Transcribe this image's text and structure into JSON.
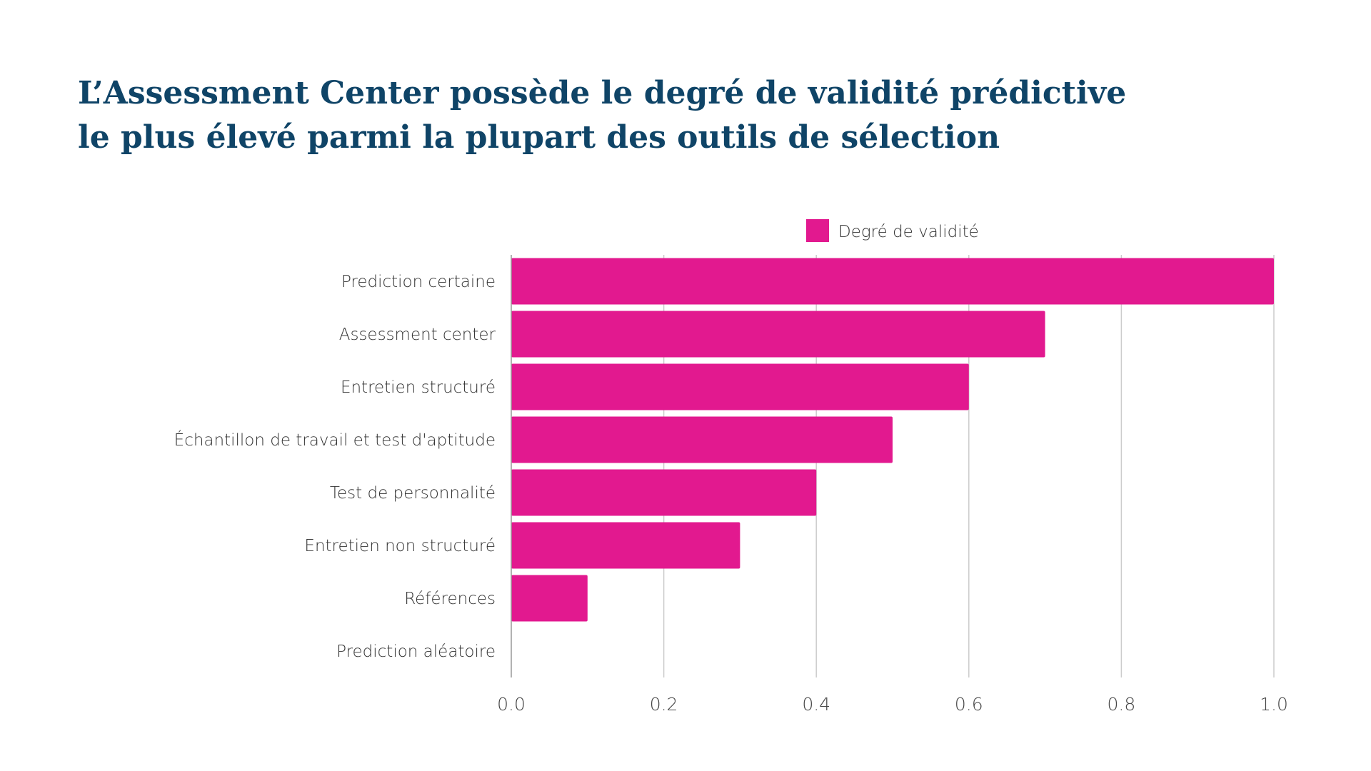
{
  "title_lines": [
    "L’Assessment Center possède le degré de validité prédictive",
    "le plus élevé parmi la plupart des outils de sélection"
  ],
  "colors": {
    "title": "#0f4467",
    "bar": "#e2198f",
    "grid": "#cccccc",
    "axis": "#999999",
    "text": "#333333"
  },
  "chart_data": {
    "type": "bar",
    "orientation": "horizontal",
    "categories": [
      "Prediction certaine",
      "Assessment center",
      "Entretien structuré",
      "Échantillon de travail et test d'aptitude",
      "Test de personnalité",
      "Entretien non structuré",
      "Références",
      "Prediction aléatoire"
    ],
    "series": [
      {
        "name": "Degré de validité",
        "values": [
          1.0,
          0.7,
          0.6,
          0.5,
          0.4,
          0.3,
          0.1,
          0.0
        ]
      }
    ],
    "xlim": [
      0,
      1.0
    ],
    "xticks": [
      "0.0",
      "0.2",
      "0.4",
      "0.6",
      "0.8",
      "1.0"
    ],
    "grid": "vertical",
    "legend": "top"
  }
}
